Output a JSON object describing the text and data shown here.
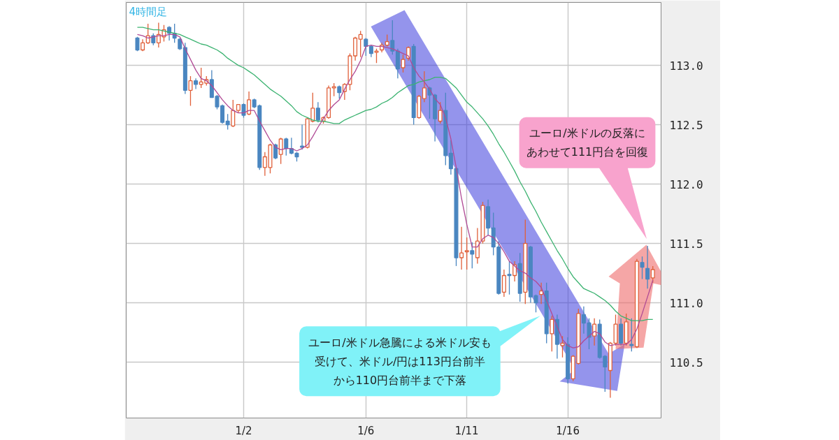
{
  "chart_data": {
    "type": "candlestick",
    "title": "4時間足",
    "categories": [
      null,
      null,
      null,
      null,
      null,
      null,
      null,
      null,
      null,
      null,
      null,
      null,
      null,
      null,
      null,
      null,
      null,
      null,
      null,
      null,
      "1/2",
      null,
      null,
      null,
      null,
      null,
      null,
      null,
      null,
      null,
      null,
      null,
      null,
      null,
      null,
      null,
      null,
      null,
      null,
      null,
      null,
      null,
      null,
      "1/6",
      null,
      null,
      null,
      null,
      null,
      null,
      null,
      null,
      null,
      null,
      null,
      null,
      null,
      null,
      null,
      null,
      null,
      null,
      "1/11",
      null,
      null,
      null,
      null,
      null,
      null,
      null,
      null,
      null,
      null,
      null,
      null,
      null,
      null,
      null,
      null,
      null,
      null,
      "1/16",
      null,
      null,
      null,
      null,
      null,
      null,
      null,
      null,
      null,
      null,
      null,
      null,
      null,
      null,
      null,
      null
    ],
    "ohlc": [
      [
        113.23,
        113.24,
        113.12,
        113.13
      ],
      [
        113.13,
        113.22,
        113.12,
        113.19
      ],
      [
        113.19,
        113.35,
        113.18,
        113.25
      ],
      [
        113.25,
        113.27,
        113.17,
        113.19
      ],
      [
        113.19,
        113.36,
        113.15,
        113.26
      ],
      [
        113.24,
        113.34,
        113.2,
        113.3
      ],
      [
        113.32,
        113.33,
        113.21,
        113.27
      ],
      [
        113.27,
        113.35,
        113.19,
        113.23
      ],
      [
        113.22,
        113.23,
        113.13,
        113.14
      ],
      [
        113.15,
        113.19,
        112.76,
        112.79
      ],
      [
        112.79,
        112.91,
        112.66,
        112.87
      ],
      [
        112.87,
        112.89,
        112.8,
        112.84
      ],
      [
        112.84,
        112.98,
        112.81,
        112.86
      ],
      [
        112.85,
        112.91,
        112.83,
        112.88
      ],
      [
        112.88,
        112.96,
        112.73,
        112.73
      ],
      [
        112.74,
        112.75,
        112.63,
        112.65
      ],
      [
        112.66,
        112.67,
        112.51,
        112.52
      ],
      [
        112.53,
        112.59,
        112.46,
        112.5
      ],
      [
        112.49,
        112.71,
        112.48,
        112.62
      ],
      [
        112.62,
        112.67,
        112.6,
        112.67
      ],
      [
        112.67,
        112.68,
        112.56,
        112.58
      ],
      [
        112.59,
        112.78,
        112.58,
        112.71
      ],
      [
        112.71,
        112.72,
        112.64,
        112.65
      ],
      [
        112.66,
        112.67,
        112.12,
        112.14
      ],
      [
        112.14,
        112.27,
        112.07,
        112.23
      ],
      [
        112.14,
        112.34,
        112.09,
        112.33
      ],
      [
        112.33,
        112.34,
        112.21,
        112.22
      ],
      [
        112.25,
        112.39,
        112.17,
        112.38
      ],
      [
        112.38,
        112.39,
        112.24,
        112.3
      ],
      [
        112.3,
        112.39,
        112.25,
        112.26
      ],
      [
        112.26,
        112.27,
        112.19,
        112.23
      ],
      [
        112.32,
        112.5,
        112.29,
        112.31
      ],
      [
        112.31,
        112.56,
        112.3,
        112.55
      ],
      [
        112.53,
        112.77,
        112.52,
        112.64
      ],
      [
        112.64,
        112.69,
        112.52,
        112.54
      ],
      [
        112.53,
        112.57,
        112.51,
        112.56
      ],
      [
        112.56,
        112.83,
        112.55,
        112.81
      ],
      [
        112.81,
        112.85,
        112.74,
        112.82
      ],
      [
        112.82,
        112.83,
        112.72,
        112.77
      ],
      [
        112.78,
        112.85,
        112.71,
        112.84
      ],
      [
        112.84,
        113.1,
        112.79,
        113.08
      ],
      [
        113.08,
        113.24,
        113.04,
        113.23
      ],
      [
        113.22,
        113.29,
        113.07,
        113.26
      ],
      [
        113.22,
        113.23,
        113.08,
        113.16
      ],
      [
        113.16,
        113.17,
        113.07,
        113.1
      ],
      [
        113.11,
        113.14,
        113.02,
        113.12
      ],
      [
        113.13,
        113.19,
        113.11,
        113.17
      ],
      [
        113.17,
        113.26,
        113.16,
        113.2
      ],
      [
        113.21,
        113.38,
        113.09,
        113.12
      ],
      [
        113.12,
        113.14,
        112.89,
        112.97
      ],
      [
        112.98,
        113.09,
        112.94,
        113.05
      ],
      [
        113.06,
        113.16,
        113.04,
        113.15
      ],
      [
        113.16,
        113.18,
        112.5,
        112.56
      ],
      [
        112.56,
        112.75,
        112.55,
        112.74
      ],
      [
        112.72,
        112.95,
        112.69,
        112.81
      ],
      [
        112.81,
        112.82,
        112.55,
        112.75
      ],
      [
        112.75,
        112.76,
        112.36,
        112.55
      ],
      [
        112.53,
        112.69,
        112.51,
        112.62
      ],
      [
        112.62,
        112.77,
        112.16,
        112.24
      ],
      [
        112.26,
        112.37,
        112.08,
        112.13
      ],
      [
        112.13,
        112.14,
        111.31,
        111.38
      ],
      [
        111.38,
        111.64,
        111.28,
        111.42
      ],
      [
        111.43,
        111.55,
        111.28,
        111.44
      ],
      [
        111.44,
        111.51,
        111.29,
        111.41
      ],
      [
        111.38,
        111.63,
        111.33,
        111.52
      ],
      [
        111.52,
        111.85,
        111.5,
        111.82
      ],
      [
        111.81,
        111.87,
        111.57,
        111.63
      ],
      [
        111.63,
        111.76,
        111.4,
        111.47
      ],
      [
        111.47,
        111.52,
        111.07,
        111.08
      ],
      [
        111.09,
        111.28,
        111.05,
        111.23
      ],
      [
        111.24,
        111.35,
        111.07,
        111.23
      ],
      [
        111.23,
        111.35,
        111.18,
        111.32
      ],
      [
        111.33,
        111.42,
        111.01,
        111.08
      ],
      [
        111.09,
        111.7,
        110.99,
        111.5
      ],
      [
        111.47,
        111.48,
        111.0,
        111.05
      ],
      [
        111.06,
        111.07,
        110.92,
        111.0
      ],
      [
        111.07,
        111.17,
        110.99,
        111.1
      ],
      [
        111.1,
        111.17,
        110.66,
        110.74
      ],
      [
        110.74,
        110.89,
        110.59,
        110.86
      ],
      [
        110.86,
        110.9,
        110.53,
        110.65
      ],
      [
        110.64,
        110.72,
        110.54,
        110.66
      ],
      [
        110.65,
        110.71,
        110.32,
        110.36
      ],
      [
        110.36,
        110.56,
        110.34,
        110.55
      ],
      [
        110.49,
        110.95,
        110.48,
        110.91
      ],
      [
        110.9,
        110.97,
        110.74,
        110.83
      ],
      [
        110.83,
        110.87,
        110.61,
        110.71
      ],
      [
        110.72,
        110.87,
        110.64,
        110.82
      ],
      [
        110.82,
        110.86,
        110.53,
        110.54
      ],
      [
        110.55,
        110.56,
        110.25,
        110.46
      ],
      [
        110.43,
        110.67,
        110.2,
        110.66
      ],
      [
        110.66,
        110.9,
        110.64,
        110.82
      ],
      [
        110.82,
        110.87,
        110.64,
        110.66
      ],
      [
        110.66,
        110.91,
        110.64,
        110.84
      ],
      [
        110.65,
        110.87,
        110.59,
        110.64
      ],
      [
        110.63,
        111.37,
        110.62,
        111.35
      ],
      [
        111.34,
        111.39,
        111.2,
        111.3
      ],
      [
        111.29,
        111.48,
        111.12,
        111.2
      ],
      [
        111.21,
        111.31,
        111.17,
        111.28
      ]
    ],
    "colors": [
      "#4a86c0",
      "#e0603a",
      "#e0603a",
      "#4a86c0",
      "#e0603a",
      "#e0603a",
      "#4a86c0",
      "#4a86c0",
      "#4a86c0",
      "#4a86c0",
      "#e0603a",
      "#4a86c0",
      "#e0603a",
      "#e0603a",
      "#4a86c0",
      "#4a86c0",
      "#4a86c0",
      "#4a86c0",
      "#e0603a",
      "#e0603a",
      "#4a86c0",
      "#e0603a",
      "#4a86c0",
      "#4a86c0",
      "#e0603a",
      "#e0603a",
      "#4a86c0",
      "#e0603a",
      "#4a86c0",
      "#4a86c0",
      "#4a86c0",
      "#4a86c0",
      "#e0603a",
      "#e0603a",
      "#4a86c0",
      "#e0603a",
      "#e0603a",
      "#e0603a",
      "#4a86c0",
      "#e0603a",
      "#e0603a",
      "#e0603a",
      "#e0603a",
      "#4a86c0",
      "#4a86c0",
      "#e0603a",
      "#e0603a",
      "#e0603a",
      "#4a86c0",
      "#4a86c0",
      "#e0603a",
      "#e0603a",
      "#4a86c0",
      "#e0603a",
      "#e0603a",
      "#4a86c0",
      "#4a86c0",
      "#e0603a",
      "#4a86c0",
      "#4a86c0",
      "#4a86c0",
      "#e0603a",
      "#e0603a",
      "#4a86c0",
      "#e0603a",
      "#e0603a",
      "#4a86c0",
      "#4a86c0",
      "#4a86c0",
      "#e0603a",
      "#4a86c0",
      "#e0603a",
      "#4a86c0",
      "#e0603a",
      "#4a86c0",
      "#4a86c0",
      "#e0603a",
      "#4a86c0",
      "#e0603a",
      "#4a86c0",
      "#e0603a",
      "#4a86c0",
      "#e0603a",
      "#e0603a",
      "#4a86c0",
      "#4a86c0",
      "#e0603a",
      "#4a86c0",
      "#4a86c0",
      "#e0603a",
      "#e0603a",
      "#4a86c0",
      "#e0603a",
      "#4a86c0",
      "#e0603a",
      "#4a86c0",
      "#4a86c0",
      "#e0603a"
    ],
    "series": [
      {
        "type": "line",
        "color": "#3cb371",
        "values": [
          113.32,
          113.32,
          113.31,
          113.3,
          113.3,
          113.29,
          113.28,
          113.27,
          113.26,
          113.24,
          113.22,
          113.2,
          113.18,
          113.17,
          113.15,
          113.13,
          113.1,
          113.06,
          113.03,
          113.0,
          112.98,
          112.95,
          112.92,
          112.88,
          112.84,
          112.8,
          112.77,
          112.74,
          112.7,
          112.66,
          112.61,
          112.58,
          112.56,
          112.54,
          112.53,
          112.53,
          112.52,
          112.51,
          112.51,
          112.54,
          112.56,
          112.58,
          112.6,
          112.62,
          112.63,
          112.65,
          112.68,
          112.7,
          112.73,
          112.77,
          112.8,
          112.83,
          112.84,
          112.86,
          112.87,
          112.88,
          112.9,
          112.9,
          112.89,
          112.85,
          112.81,
          112.75,
          112.69,
          112.65,
          112.6,
          112.55,
          112.49,
          112.42,
          112.34,
          112.27,
          112.19,
          112.11,
          112.02,
          111.94,
          111.85,
          111.77,
          111.68,
          111.6,
          111.52,
          111.44,
          111.37,
          111.29,
          111.22,
          111.17,
          111.12,
          111.1,
          111.08,
          111.05,
          111.02,
          110.98,
          110.93,
          110.89,
          110.87,
          110.85,
          110.85,
          110.85,
          110.86,
          110.86
        ]
      },
      {
        "type": "line",
        "color": "#b04a95",
        "values": [
          113.26,
          113.25,
          113.23,
          113.24,
          113.25,
          113.25,
          113.26,
          113.26,
          113.24,
          113.14,
          113.05,
          112.96,
          112.89,
          112.87,
          112.83,
          112.77,
          112.71,
          112.66,
          112.62,
          112.6,
          112.6,
          112.62,
          112.62,
          112.53,
          112.45,
          112.37,
          112.31,
          112.29,
          112.3,
          112.3,
          112.28,
          112.3,
          112.33,
          112.4,
          112.48,
          112.55,
          112.62,
          112.67,
          112.71,
          112.8,
          112.88,
          112.95,
          113.04,
          113.16,
          113.17,
          113.16,
          113.16,
          113.15,
          113.14,
          113.12,
          113.1,
          113.08,
          112.98,
          112.91,
          112.86,
          112.8,
          112.72,
          112.67,
          112.56,
          112.38,
          112.14,
          111.88,
          111.66,
          111.47,
          111.47,
          111.54,
          111.57,
          111.55,
          111.5,
          111.43,
          111.35,
          111.31,
          111.27,
          111.25,
          111.21,
          111.18,
          111.13,
          111.02,
          110.91,
          110.8,
          110.69,
          110.64,
          110.62,
          110.63,
          110.68,
          110.72,
          110.76,
          110.74,
          110.67,
          110.64,
          110.65,
          110.65,
          110.65,
          110.69,
          110.78,
          110.91,
          111.05,
          111.19
        ]
      }
    ],
    "ylim": [
      110.03,
      113.53
    ],
    "yticks": [
      110.5,
      {
        "value": 111,
        "label": "111.0"
      },
      111.5,
      {
        "value": 112,
        "label": "112.0"
      },
      112.5,
      {
        "value": 113,
        "label": "113.0"
      }
    ],
    "grid": true,
    "annotations": [
      "ユーロ/米ドル急騰による米ドル安も受けて、米ドル/円は113円台前半から110円台前半まで下落",
      "ユーロ/米ドルの反落にあわせて111円台を回復"
    ]
  }
}
